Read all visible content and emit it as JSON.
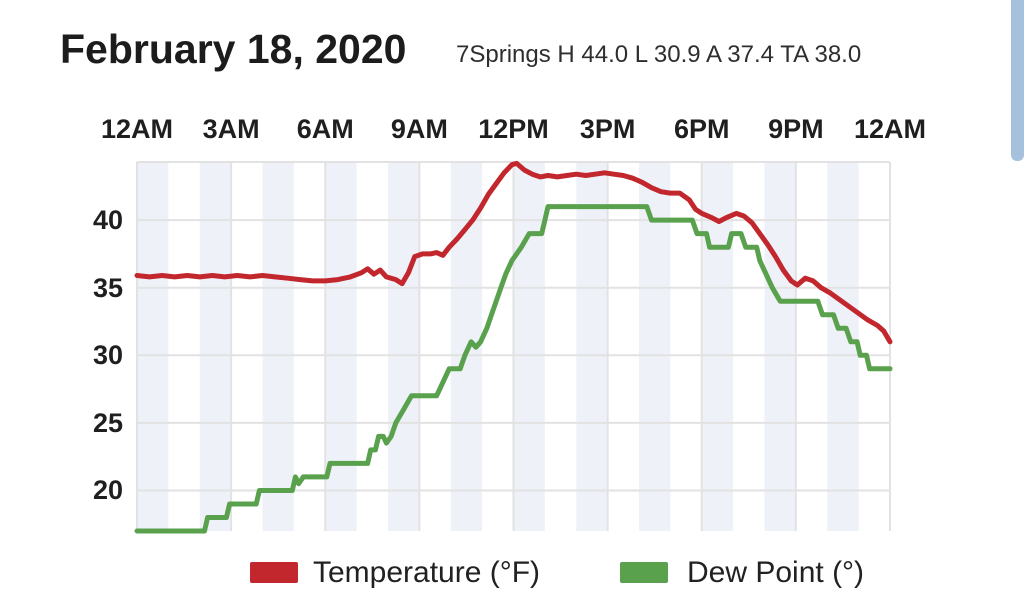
{
  "header": {
    "title": "February 18, 2020",
    "station_summary": "7Springs H 44.0 L 30.9 A 37.4 TA 38.0"
  },
  "colors": {
    "temperature": "#c1272d",
    "dew_point": "#5aa14e",
    "stripe": "#eef2f8",
    "gridline": "#e2e2e2",
    "axis_text": "#1f1f1f",
    "scrollbar": "#a6c1dc"
  },
  "legend": {
    "items": [
      {
        "label": "Temperature (°F)",
        "color": "#c1272d"
      },
      {
        "label": "Dew Point (°)",
        "color": "#5aa14e"
      }
    ]
  },
  "chart_data": {
    "type": "line",
    "title": "February 18, 2020",
    "x_axis": {
      "position": "top",
      "unit": "time of day",
      "range_hours": [
        0,
        24
      ],
      "ticks": [
        {
          "label": "12AM",
          "hour": 0
        },
        {
          "label": "3AM",
          "hour": 3
        },
        {
          "label": "6AM",
          "hour": 6
        },
        {
          "label": "9AM",
          "hour": 9
        },
        {
          "label": "12PM",
          "hour": 12
        },
        {
          "label": "3PM",
          "hour": 15
        },
        {
          "label": "6PM",
          "hour": 18
        },
        {
          "label": "9PM",
          "hour": 21
        },
        {
          "label": "12AM",
          "hour": 24
        }
      ]
    },
    "y_axis": {
      "range": [
        17,
        44.3
      ],
      "ticks": [
        {
          "label": "40",
          "value": 40
        },
        {
          "label": "35",
          "value": 35
        },
        {
          "label": "30",
          "value": 30
        },
        {
          "label": "25",
          "value": 25
        },
        {
          "label": "20",
          "value": 20
        }
      ]
    },
    "background_stripes": {
      "period_hours": 1,
      "shaded_hours": "even",
      "color": "#eef2f8"
    },
    "grid": {
      "horizontal": true,
      "vertical_every_hours": 3,
      "top_border": true
    },
    "series": [
      {
        "name": "Temperature (°F)",
        "color": "#c1272d",
        "points": [
          [
            0,
            35.9
          ],
          [
            0.4,
            35.8
          ],
          [
            0.8,
            35.9
          ],
          [
            1.2,
            35.8
          ],
          [
            1.6,
            35.9
          ],
          [
            2,
            35.8
          ],
          [
            2.4,
            35.9
          ],
          [
            2.8,
            35.8
          ],
          [
            3.2,
            35.9
          ],
          [
            3.6,
            35.8
          ],
          [
            4,
            35.9
          ],
          [
            4.4,
            35.8
          ],
          [
            4.8,
            35.7
          ],
          [
            5.2,
            35.6
          ],
          [
            5.6,
            35.5
          ],
          [
            6,
            35.5
          ],
          [
            6.4,
            35.6
          ],
          [
            6.8,
            35.8
          ],
          [
            7.15,
            36.1
          ],
          [
            7.35,
            36.4
          ],
          [
            7.55,
            36.0
          ],
          [
            7.75,
            36.3
          ],
          [
            7.95,
            35.8
          ],
          [
            8.25,
            35.6
          ],
          [
            8.45,
            35.3
          ],
          [
            8.65,
            36.1
          ],
          [
            8.85,
            37.3
          ],
          [
            9.1,
            37.5
          ],
          [
            9.35,
            37.5
          ],
          [
            9.55,
            37.6
          ],
          [
            9.75,
            37.4
          ],
          [
            9.95,
            38.0
          ],
          [
            10.2,
            38.6
          ],
          [
            10.45,
            39.3
          ],
          [
            10.7,
            40.0
          ],
          [
            10.95,
            40.9
          ],
          [
            11.2,
            41.9
          ],
          [
            11.45,
            42.7
          ],
          [
            11.7,
            43.5
          ],
          [
            11.95,
            44.1
          ],
          [
            12.1,
            44.2
          ],
          [
            12.35,
            43.7
          ],
          [
            12.6,
            43.4
          ],
          [
            12.85,
            43.2
          ],
          [
            13.1,
            43.3
          ],
          [
            13.4,
            43.2
          ],
          [
            13.7,
            43.3
          ],
          [
            14,
            43.4
          ],
          [
            14.3,
            43.3
          ],
          [
            14.6,
            43.4
          ],
          [
            14.9,
            43.5
          ],
          [
            15.2,
            43.4
          ],
          [
            15.5,
            43.3
          ],
          [
            15.8,
            43.1
          ],
          [
            16.1,
            42.8
          ],
          [
            16.4,
            42.4
          ],
          [
            16.7,
            42.1
          ],
          [
            17,
            42.0
          ],
          [
            17.3,
            42.0
          ],
          [
            17.6,
            41.5
          ],
          [
            17.8,
            40.8
          ],
          [
            18,
            40.5
          ],
          [
            18.3,
            40.2
          ],
          [
            18.55,
            39.9
          ],
          [
            18.8,
            40.2
          ],
          [
            19.1,
            40.5
          ],
          [
            19.35,
            40.3
          ],
          [
            19.6,
            39.8
          ],
          [
            19.85,
            39.0
          ],
          [
            20.1,
            38.2
          ],
          [
            20.35,
            37.3
          ],
          [
            20.6,
            36.3
          ],
          [
            20.85,
            35.5
          ],
          [
            21.05,
            35.2
          ],
          [
            21.3,
            35.7
          ],
          [
            21.55,
            35.5
          ],
          [
            21.8,
            35.0
          ],
          [
            22.1,
            34.6
          ],
          [
            22.4,
            34.1
          ],
          [
            22.7,
            33.6
          ],
          [
            23,
            33.1
          ],
          [
            23.3,
            32.6
          ],
          [
            23.6,
            32.2
          ],
          [
            23.8,
            31.8
          ],
          [
            24,
            31.0
          ]
        ]
      },
      {
        "name": "Dew Point (°)",
        "color": "#5aa14e",
        "points": [
          [
            0,
            17
          ],
          [
            2.15,
            17
          ],
          [
            2.25,
            18
          ],
          [
            2.85,
            18
          ],
          [
            2.95,
            19
          ],
          [
            3.8,
            19
          ],
          [
            3.9,
            20
          ],
          [
            4.95,
            20
          ],
          [
            5.05,
            21
          ],
          [
            5.15,
            20.5
          ],
          [
            5.3,
            21
          ],
          [
            6.05,
            21
          ],
          [
            6.15,
            22
          ],
          [
            7.35,
            22
          ],
          [
            7.45,
            23
          ],
          [
            7.6,
            23
          ],
          [
            7.7,
            24
          ],
          [
            7.85,
            24
          ],
          [
            7.95,
            23.5
          ],
          [
            8.1,
            24
          ],
          [
            8.25,
            25
          ],
          [
            8.5,
            26
          ],
          [
            8.75,
            27
          ],
          [
            9.55,
            27
          ],
          [
            9.75,
            28
          ],
          [
            9.95,
            29
          ],
          [
            10.3,
            29
          ],
          [
            10.45,
            30
          ],
          [
            10.65,
            31
          ],
          [
            10.8,
            30.6
          ],
          [
            10.95,
            31
          ],
          [
            11.15,
            32
          ],
          [
            11.3,
            33
          ],
          [
            11.45,
            34
          ],
          [
            11.6,
            35
          ],
          [
            11.75,
            36
          ],
          [
            11.95,
            37
          ],
          [
            12.25,
            38
          ],
          [
            12.5,
            39
          ],
          [
            12.9,
            39
          ],
          [
            13.0,
            40
          ],
          [
            13.1,
            41
          ],
          [
            16.25,
            41
          ],
          [
            16.4,
            40
          ],
          [
            17.7,
            40
          ],
          [
            17.85,
            39
          ],
          [
            18.15,
            39
          ],
          [
            18.25,
            38
          ],
          [
            18.85,
            38
          ],
          [
            18.95,
            39
          ],
          [
            19.25,
            39
          ],
          [
            19.4,
            38
          ],
          [
            19.75,
            38
          ],
          [
            19.85,
            37
          ],
          [
            20.05,
            36
          ],
          [
            20.25,
            35
          ],
          [
            20.5,
            34
          ],
          [
            21.7,
            34
          ],
          [
            21.85,
            33
          ],
          [
            22.2,
            33
          ],
          [
            22.35,
            32
          ],
          [
            22.6,
            32
          ],
          [
            22.75,
            31
          ],
          [
            22.95,
            31
          ],
          [
            23.05,
            30
          ],
          [
            23.25,
            30
          ],
          [
            23.35,
            29
          ],
          [
            24,
            29
          ]
        ]
      }
    ]
  }
}
